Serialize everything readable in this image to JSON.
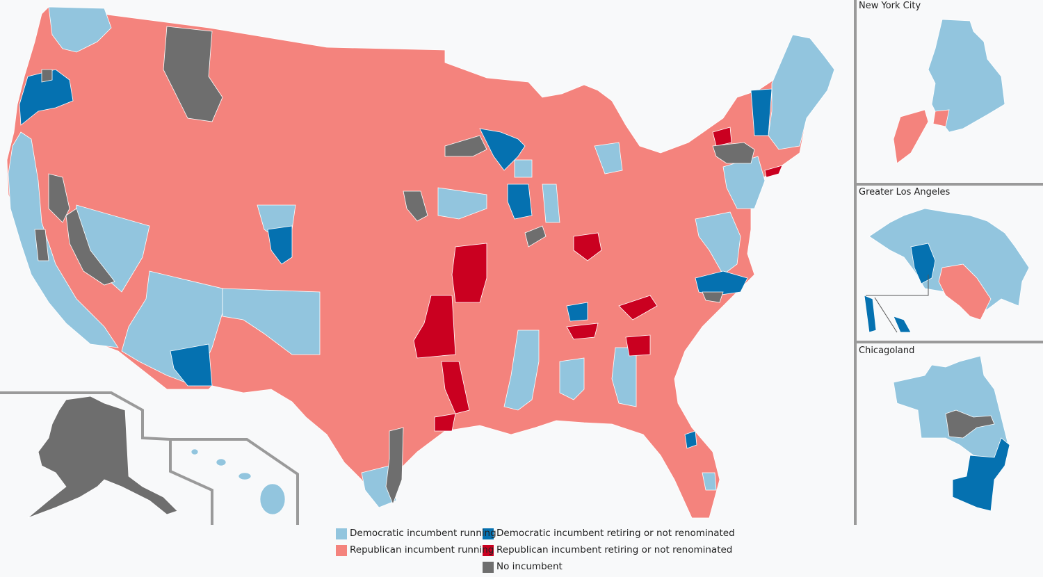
{
  "colors": {
    "background": "#f8f9fa",
    "dem_running": "#92c5de",
    "dem_retiring": "#0571b0",
    "rep_running": "#f4837d",
    "rep_retiring": "#ca0020",
    "no_incumbent": "#6e6e6e",
    "divider": "#9a9a9a",
    "district_line": "#ffffff"
  },
  "insets": {
    "nyc": {
      "title": "New York City"
    },
    "la": {
      "title": "Greater Los Angeles"
    },
    "chicago": {
      "title": "Chicagoland"
    }
  },
  "legend": {
    "dem_running": "Democratic incumbent running",
    "dem_retiring": "Democratic incumbent retiring or not renominated",
    "rep_running": "Republican incumbent running",
    "rep_retiring": "Republican incumbent retiring or not renominated",
    "no_incumbent": "No incumbent"
  }
}
